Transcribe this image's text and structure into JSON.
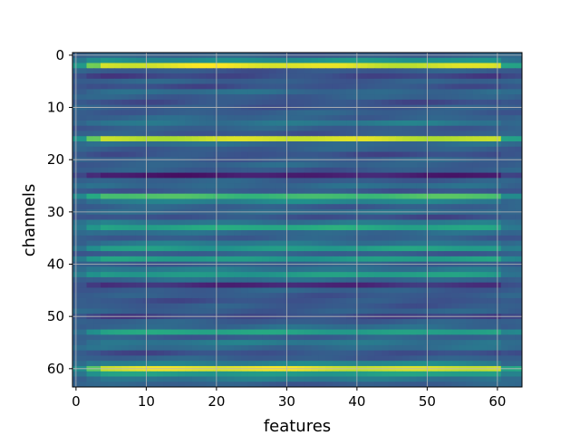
{
  "chart_data": {
    "type": "heatmap",
    "title": "",
    "xlabel": "features",
    "ylabel": "channels",
    "x_range": [
      0,
      63
    ],
    "y_range": [
      0,
      63
    ],
    "y_inverted": true,
    "grid": true,
    "colormap": "viridis",
    "color_range": [
      0,
      1
    ],
    "x_ticks": [
      0,
      10,
      20,
      30,
      40,
      50,
      60
    ],
    "y_ticks": [
      0,
      10,
      20,
      30,
      40,
      50,
      60
    ],
    "n_features": 64,
    "row_levels": [
      0.3,
      0.5,
      0.95,
      0.28,
      0.22,
      0.3,
      0.25,
      0.35,
      0.3,
      0.25,
      0.28,
      0.3,
      0.32,
      0.4,
      0.3,
      0.28,
      0.92,
      0.35,
      0.3,
      0.25,
      0.3,
      0.32,
      0.28,
      0.1,
      0.3,
      0.35,
      0.28,
      0.7,
      0.45,
      0.3,
      0.35,
      0.25,
      0.4,
      0.6,
      0.35,
      0.3,
      0.4,
      0.55,
      0.3,
      0.55,
      0.3,
      0.4,
      0.55,
      0.35,
      0.15,
      0.3,
      0.28,
      0.26,
      0.28,
      0.3,
      0.22,
      0.3,
      0.35,
      0.58,
      0.3,
      0.4,
      0.35,
      0.25,
      0.3,
      0.45,
      0.95,
      0.55,
      0.4,
      0.3
    ]
  }
}
